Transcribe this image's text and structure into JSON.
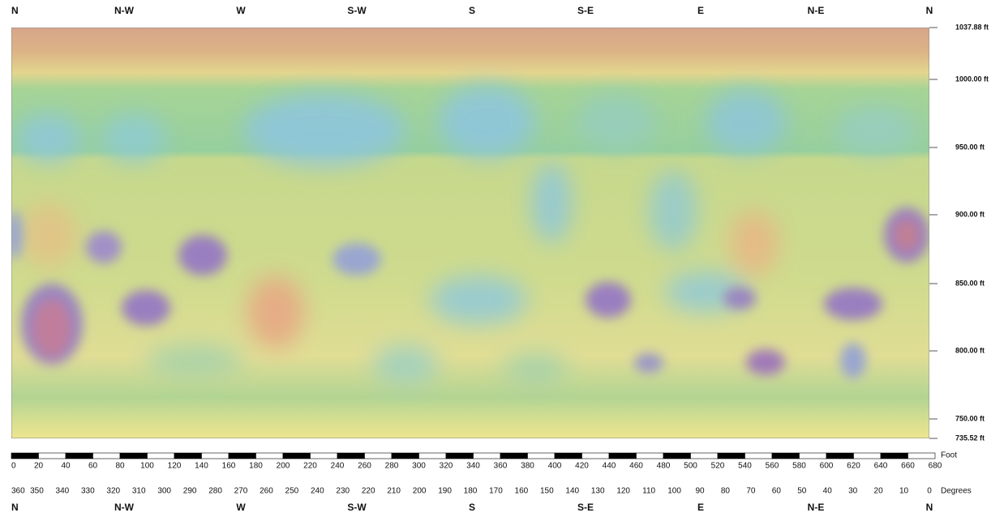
{
  "compass_top": [
    "N",
    "N-W",
    "W",
    "S-W",
    "S",
    "S-E",
    "E",
    "N-E",
    "N"
  ],
  "compass_bottom": [
    "N",
    "N-W",
    "W",
    "S-W",
    "S",
    "S-E",
    "E",
    "N-E",
    "N"
  ],
  "depth_labels": [
    "1037.88 ft",
    "1000.00 ft",
    "950.00 ft",
    "900.00 ft",
    "850.00 ft",
    "800.00 ft",
    "750.00 ft",
    "735.52 ft"
  ],
  "foot_scale": {
    "unit": "Foot",
    "ticks": [
      0,
      20,
      40,
      60,
      80,
      100,
      120,
      140,
      160,
      180,
      200,
      220,
      240,
      260,
      280,
      300,
      320,
      340,
      360,
      380,
      400,
      420,
      440,
      460,
      480,
      500,
      520,
      540,
      560,
      580,
      600,
      620,
      640,
      660,
      680
    ]
  },
  "degree_scale": {
    "unit": "Degrees",
    "ticks": [
      360,
      350,
      340,
      330,
      320,
      310,
      300,
      290,
      280,
      270,
      260,
      250,
      240,
      230,
      220,
      210,
      200,
      190,
      180,
      170,
      160,
      150,
      140,
      130,
      120,
      110,
      100,
      90,
      80,
      70,
      60,
      50,
      40,
      30,
      20,
      10,
      0
    ]
  }
}
